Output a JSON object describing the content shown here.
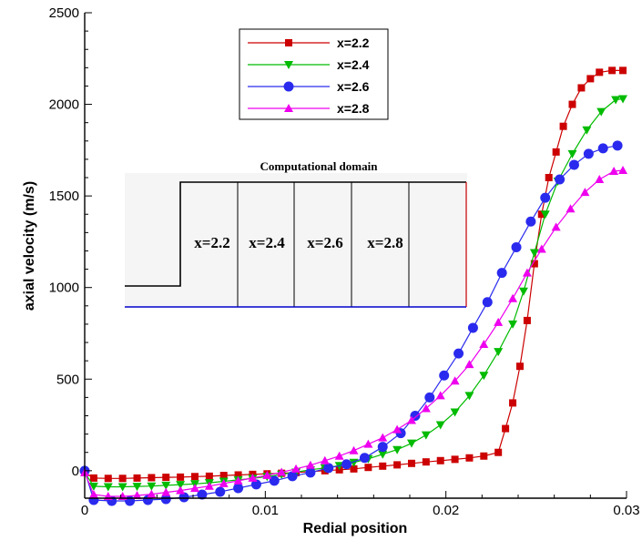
{
  "chart_data": {
    "type": "line",
    "title": "",
    "xlabel": "Redial position",
    "ylabel": "axial velocity (m/s)",
    "xlim": [
      0,
      0.03
    ],
    "ylim": [
      -150,
      2500
    ],
    "x_ticks": [
      0,
      0.01,
      0.02,
      0.03
    ],
    "x_tick_labels": [
      "0",
      "0.01",
      "0.02",
      "0.03"
    ],
    "y_ticks": [
      0,
      500,
      1000,
      1500,
      2000,
      2500
    ],
    "y_tick_labels": [
      "0",
      "500",
      "1000",
      "1500",
      "2000",
      "2500"
    ],
    "grid": false,
    "legend_position": "top-center",
    "series": [
      {
        "name": "x=2.2",
        "color": "#cc0000",
        "marker": "square",
        "points": [
          [
            0.0,
            -10
          ],
          [
            0.0005,
            -40
          ],
          [
            0.0013,
            -42
          ],
          [
            0.0021,
            -42
          ],
          [
            0.0029,
            -40
          ],
          [
            0.0037,
            -38
          ],
          [
            0.0045,
            -36
          ],
          [
            0.0053,
            -35
          ],
          [
            0.0061,
            -32
          ],
          [
            0.0069,
            -30
          ],
          [
            0.0077,
            -26
          ],
          [
            0.0085,
            -23
          ],
          [
            0.0093,
            -20
          ],
          [
            0.0101,
            -17
          ],
          [
            0.0109,
            -14
          ],
          [
            0.0117,
            -10
          ],
          [
            0.0125,
            -5
          ],
          [
            0.0133,
            0
          ],
          [
            0.0141,
            5
          ],
          [
            0.0149,
            10
          ],
          [
            0.0157,
            18
          ],
          [
            0.0165,
            25
          ],
          [
            0.0173,
            32
          ],
          [
            0.0181,
            40
          ],
          [
            0.0189,
            48
          ],
          [
            0.0197,
            55
          ],
          [
            0.0205,
            62
          ],
          [
            0.0213,
            70
          ],
          [
            0.0221,
            80
          ],
          [
            0.0229,
            100
          ],
          [
            0.0233,
            230
          ],
          [
            0.0237,
            370
          ],
          [
            0.0241,
            570
          ],
          [
            0.0245,
            820
          ],
          [
            0.0249,
            1130
          ],
          [
            0.0253,
            1400
          ],
          [
            0.0257,
            1600
          ],
          [
            0.0261,
            1740
          ],
          [
            0.0265,
            1880
          ],
          [
            0.027,
            2000
          ],
          [
            0.0275,
            2090
          ],
          [
            0.028,
            2140
          ],
          [
            0.0285,
            2175
          ],
          [
            0.0292,
            2185
          ],
          [
            0.0298,
            2185
          ]
        ]
      },
      {
        "name": "x=2.4",
        "color": "#00bb00",
        "marker": "triangle-down",
        "points": [
          [
            0.0,
            -10
          ],
          [
            0.0005,
            -85
          ],
          [
            0.0013,
            -88
          ],
          [
            0.0021,
            -88
          ],
          [
            0.0029,
            -86
          ],
          [
            0.0037,
            -84
          ],
          [
            0.0045,
            -80
          ],
          [
            0.0053,
            -76
          ],
          [
            0.0061,
            -72
          ],
          [
            0.0069,
            -66
          ],
          [
            0.0077,
            -58
          ],
          [
            0.0085,
            -50
          ],
          [
            0.0093,
            -42
          ],
          [
            0.0101,
            -32
          ],
          [
            0.0109,
            -20
          ],
          [
            0.0117,
            -8
          ],
          [
            0.0125,
            5
          ],
          [
            0.0133,
            15
          ],
          [
            0.0141,
            28
          ],
          [
            0.0149,
            45
          ],
          [
            0.0157,
            65
          ],
          [
            0.0165,
            90
          ],
          [
            0.0173,
            115
          ],
          [
            0.0181,
            150
          ],
          [
            0.0189,
            195
          ],
          [
            0.0197,
            250
          ],
          [
            0.0205,
            320
          ],
          [
            0.0213,
            410
          ],
          [
            0.0221,
            520
          ],
          [
            0.0229,
            650
          ],
          [
            0.0237,
            800
          ],
          [
            0.0243,
            980
          ],
          [
            0.0249,
            1190
          ],
          [
            0.0255,
            1400
          ],
          [
            0.0262,
            1580
          ],
          [
            0.027,
            1730
          ],
          [
            0.0278,
            1860
          ],
          [
            0.0286,
            1960
          ],
          [
            0.0294,
            2025
          ],
          [
            0.0298,
            2030
          ]
        ]
      },
      {
        "name": "x=2.6",
        "color": "#2a2aee",
        "marker": "circle",
        "points": [
          [
            0.0,
            0
          ],
          [
            0.0005,
            -160
          ],
          [
            0.0015,
            -165
          ],
          [
            0.0025,
            -165
          ],
          [
            0.0035,
            -160
          ],
          [
            0.0045,
            -155
          ],
          [
            0.0055,
            -145
          ],
          [
            0.0065,
            -130
          ],
          [
            0.0075,
            -115
          ],
          [
            0.0085,
            -95
          ],
          [
            0.0095,
            -75
          ],
          [
            0.0105,
            -55
          ],
          [
            0.0115,
            -30
          ],
          [
            0.0125,
            -10
          ],
          [
            0.0135,
            15
          ],
          [
            0.0145,
            35
          ],
          [
            0.0155,
            70
          ],
          [
            0.0165,
            130
          ],
          [
            0.0175,
            205
          ],
          [
            0.0183,
            300
          ],
          [
            0.0191,
            400
          ],
          [
            0.0199,
            520
          ],
          [
            0.0207,
            640
          ],
          [
            0.0215,
            780
          ],
          [
            0.0223,
            920
          ],
          [
            0.0231,
            1080
          ],
          [
            0.0239,
            1220
          ],
          [
            0.0247,
            1360
          ],
          [
            0.0255,
            1490
          ],
          [
            0.0263,
            1590
          ],
          [
            0.0271,
            1670
          ],
          [
            0.0279,
            1730
          ],
          [
            0.0287,
            1760
          ],
          [
            0.0295,
            1775
          ]
        ]
      },
      {
        "name": "x=2.8",
        "color": "#ee00ee",
        "marker": "triangle-up",
        "points": [
          [
            0.0,
            -10
          ],
          [
            0.0005,
            -130
          ],
          [
            0.0013,
            -140
          ],
          [
            0.0021,
            -140
          ],
          [
            0.0029,
            -135
          ],
          [
            0.0037,
            -128
          ],
          [
            0.0045,
            -118
          ],
          [
            0.0053,
            -108
          ],
          [
            0.0061,
            -96
          ],
          [
            0.0069,
            -84
          ],
          [
            0.0077,
            -70
          ],
          [
            0.0085,
            -55
          ],
          [
            0.0093,
            -40
          ],
          [
            0.0101,
            -25
          ],
          [
            0.0109,
            -8
          ],
          [
            0.0117,
            10
          ],
          [
            0.0125,
            30
          ],
          [
            0.0133,
            55
          ],
          [
            0.0141,
            80
          ],
          [
            0.0149,
            110
          ],
          [
            0.0157,
            145
          ],
          [
            0.0165,
            180
          ],
          [
            0.0173,
            225
          ],
          [
            0.0181,
            275
          ],
          [
            0.0189,
            340
          ],
          [
            0.0197,
            410
          ],
          [
            0.0205,
            490
          ],
          [
            0.0213,
            580
          ],
          [
            0.0221,
            690
          ],
          [
            0.0229,
            810
          ],
          [
            0.0237,
            940
          ],
          [
            0.0245,
            1080
          ],
          [
            0.0253,
            1210
          ],
          [
            0.0261,
            1330
          ],
          [
            0.0269,
            1430
          ],
          [
            0.0277,
            1520
          ],
          [
            0.0285,
            1590
          ],
          [
            0.0293,
            1635
          ],
          [
            0.0298,
            1640
          ]
        ]
      }
    ]
  },
  "inset": {
    "title": "Computational domain",
    "labels": [
      "x=2.2",
      "x=2.4",
      "x=2.6",
      "x=2.8"
    ],
    "background_color": "#f5f5f5",
    "bottom_line_color": "#0000cc",
    "outlet_line_color": "#cc0000"
  }
}
